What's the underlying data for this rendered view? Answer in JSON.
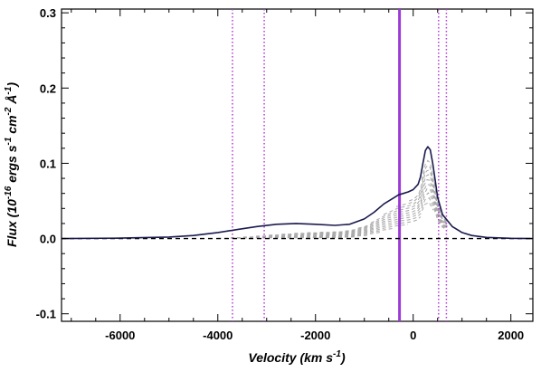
{
  "chart_data": {
    "type": "line",
    "title": "",
    "xlabel": "Velocity (km s",
    "xlabel_sup": "-1",
    "xlabel_end": ")",
    "ylabel_parts": [
      "Flux (10",
      "-16",
      " ergs s",
      "-1",
      " cm",
      "-2",
      " Å",
      "-1",
      ")"
    ],
    "xlim": [
      -7200,
      2450
    ],
    "ylim": [
      -0.11,
      0.305
    ],
    "x_ticks": [
      -6000,
      -4000,
      -2000,
      0,
      2000
    ],
    "x_tick_labels": [
      "-6000",
      "-4000",
      "-2000",
      "0",
      "2000"
    ],
    "y_ticks": [
      -0.1,
      0.0,
      0.1,
      0.2,
      0.3
    ],
    "y_tick_labels": [
      "-0.1",
      "0.0",
      "0.1",
      "0.2",
      "0.3"
    ],
    "grid": false,
    "series": [
      {
        "style": "solid",
        "color": "#1a1a4e",
        "x": [
          -7200,
          -6000,
          -5000,
          -4500,
          -4000,
          -3600,
          -3200,
          -2800,
          -2400,
          -2000,
          -1600,
          -1300,
          -1000,
          -800,
          -600,
          -400,
          -300,
          -200,
          -100,
          0,
          100,
          150,
          200,
          250,
          300,
          350,
          400,
          450,
          500,
          600,
          800,
          1000,
          1200,
          1500,
          2000,
          2450
        ],
        "y": [
          0.0,
          0.0005,
          0.002,
          0.004,
          0.008,
          0.012,
          0.016,
          0.019,
          0.02,
          0.019,
          0.0175,
          0.019,
          0.026,
          0.035,
          0.046,
          0.054,
          0.058,
          0.06,
          0.062,
          0.065,
          0.072,
          0.082,
          0.1,
          0.117,
          0.122,
          0.118,
          0.1,
          0.078,
          0.055,
          0.032,
          0.016,
          0.008,
          0.004,
          0.0015,
          0.0003,
          0.0
        ]
      }
    ],
    "baseline": {
      "y": 0.0,
      "style": "dashed",
      "color": "#000000"
    },
    "shaded_model": {
      "color": "#a8a8a8",
      "style": "dashed",
      "x_range": [
        -4000,
        700
      ],
      "components": 18
    },
    "vertical_lines": [
      {
        "x": -3700,
        "style": "dotted",
        "color": "#b23ad6"
      },
      {
        "x": -3050,
        "style": "dotted",
        "color": "#b23ad6"
      },
      {
        "x": -280,
        "style": "solid",
        "color": "#9b3ad6"
      },
      {
        "x": 520,
        "style": "dotted",
        "color": "#b23ad6"
      },
      {
        "x": 680,
        "style": "dotted",
        "color": "#b23ad6"
      }
    ]
  }
}
